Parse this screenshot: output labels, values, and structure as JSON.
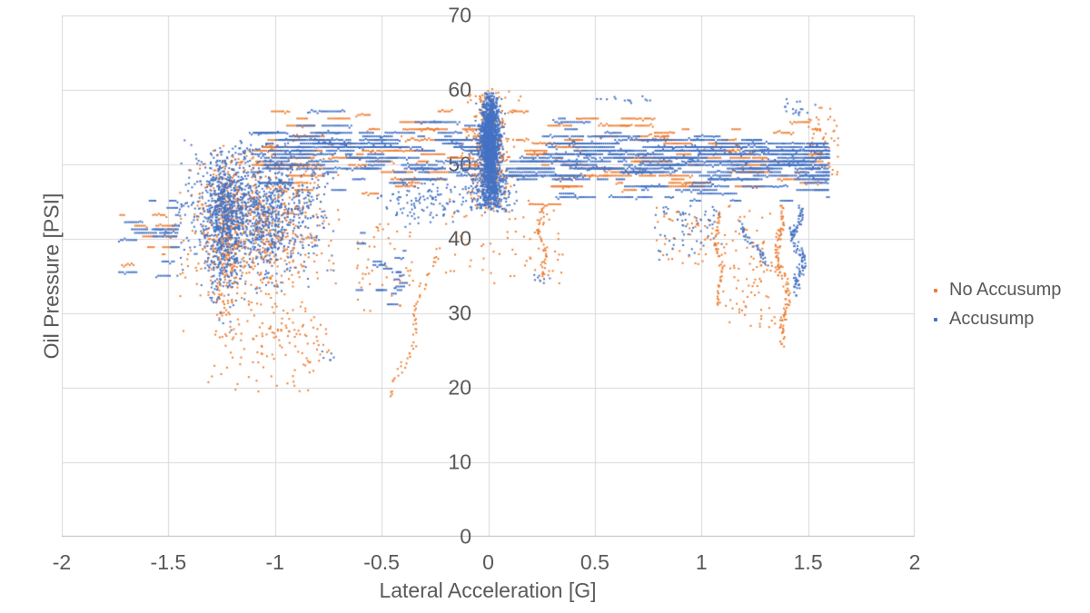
{
  "page": {
    "background": "#FFFFFF"
  },
  "chart_data": {
    "type": "scatter",
    "title": "",
    "xlabel": "Lateral Acceleration [G]",
    "ylabel": "Oil Pressure [PSI]",
    "xlim": [
      -2,
      2
    ],
    "ylim": [
      0,
      70
    ],
    "x_ticks": [
      "-2",
      "-1.5",
      "-1",
      "-0.5",
      "0",
      "0.5",
      "1",
      "1.5",
      "2"
    ],
    "y_ticks": [
      "0",
      "10",
      "20",
      "30",
      "40",
      "50",
      "60",
      "70"
    ],
    "grid": true,
    "legend_position": "right",
    "marker_px": 2,
    "seed": 1337,
    "colors": {
      "grid": "#D9D9D9",
      "axis": "#BFBFBF",
      "text": "#595959"
    },
    "series": [
      {
        "name": "No Accusump",
        "color": "#ED7D31",
        "clusters": [
          {
            "type": "streaks",
            "x": [
              0.07,
              1.57
            ],
            "yMean": 50.8,
            "ySd": 2.8,
            "yClip": [
              44.5,
              58.2
            ],
            "count": 950,
            "lenMean": 0.1
          },
          {
            "type": "streaks",
            "x": [
              -1.12,
              -0.04
            ],
            "yMean": 51.3,
            "ySd": 2.9,
            "yClip": [
              45,
              58.4
            ],
            "count": 650,
            "lenMean": 0.09
          },
          {
            "type": "gauss",
            "xMean": -1.08,
            "xSd": 0.17,
            "yMean": 42,
            "ySd": 5.5,
            "xClip": [
              -1.48,
              -0.7
            ],
            "yClip": [
              25,
              53
            ],
            "count": 680
          },
          {
            "type": "gauss",
            "xMean": -1.23,
            "xSd": 0.045,
            "yMean": 40,
            "ySd": 6,
            "xClip": [
              -1.34,
              -1.12
            ],
            "yClip": [
              24,
              52
            ],
            "count": 240
          },
          {
            "type": "streaks",
            "x": [
              -1.74,
              -1.46
            ],
            "yMean": 40.5,
            "ySd": 2.6,
            "yClip": [
              34,
              46
            ],
            "count": 70,
            "lenMean": 0.05
          },
          {
            "type": "gauss",
            "xMean": 0,
            "xSd": 0.05,
            "yMean": 51.5,
            "ySd": 4,
            "xClip": [
              -0.13,
              0.13
            ],
            "yClip": [
              43.5,
              60.3
            ],
            "count": 380
          },
          {
            "type": "uniform",
            "x": [
              -0.2,
              0.35
            ],
            "y": [
              34,
              45.5
            ],
            "count": 65
          },
          {
            "type": "trail",
            "from": [
              0.24,
              44
            ],
            "to": [
              0.27,
              34.5
            ],
            "count": 45,
            "wiggle": 0.015,
            "jitterY": 0.7
          },
          {
            "type": "trail",
            "from": [
              -0.25,
              38.5
            ],
            "to": [
              -0.44,
              18.5
            ],
            "count": 55,
            "wiggle": 0.02,
            "jitterY": 0.8
          },
          {
            "type": "uniform",
            "x": [
              -0.62,
              -0.35
            ],
            "y": [
              30,
              42
            ],
            "count": 50
          },
          {
            "type": "uniform",
            "x": [
              0.78,
              1.38
            ],
            "y": [
              36,
              44.5
            ],
            "count": 85
          },
          {
            "type": "trail",
            "from": [
              1.07,
              44
            ],
            "to": [
              1.09,
              30.5
            ],
            "count": 55,
            "wiggle": 0.012,
            "jitterY": 0.8
          },
          {
            "type": "trail",
            "from": [
              1.36,
              44
            ],
            "to": [
              1.4,
              25.8
            ],
            "count": 115,
            "wiggle": 0.02,
            "jitterY": 1
          },
          {
            "type": "uniform",
            "x": [
              1.1,
              1.35
            ],
            "y": [
              28,
              40
            ],
            "count": 65
          },
          {
            "type": "uniform",
            "x": [
              1.5,
              1.65
            ],
            "y": [
              48,
              57.5
            ],
            "count": 50
          },
          {
            "type": "uniform",
            "x": [
              -1.32,
              -0.78
            ],
            "y": [
              19.5,
              28.5
            ],
            "count": 55
          },
          {
            "type": "uniform",
            "x": [
              -0.12,
              0.2
            ],
            "y": [
              58.3,
              59.8
            ],
            "count": 16
          },
          {
            "type": "gauss",
            "xMean": -0.9,
            "xSd": 0.12,
            "yMean": 27,
            "ySd": 2.5,
            "xClip": [
              -1.15,
              -0.72
            ],
            "yClip": [
              20.5,
              33
            ],
            "count": 55
          }
        ]
      },
      {
        "name": "Accusump",
        "color": "#4472C4",
        "clusters": [
          {
            "type": "streaks",
            "x": [
              0.07,
              1.6
            ],
            "yMean": 50.3,
            "ySd": 2.1,
            "yClip": [
              45,
              57.5
            ],
            "count": 2700,
            "lenMean": 0.12
          },
          {
            "type": "streaks",
            "x": [
              -1.12,
              -0.04
            ],
            "yMean": 51.3,
            "ySd": 2.2,
            "yClip": [
              45.5,
              58.3
            ],
            "count": 1350,
            "lenMean": 0.1
          },
          {
            "type": "gauss",
            "xMean": -1.1,
            "xSd": 0.16,
            "yMean": 44,
            "ySd": 4.2,
            "xClip": [
              -1.45,
              -0.72
            ],
            "yClip": [
              30,
              53.5
            ],
            "count": 1100
          },
          {
            "type": "gauss",
            "xMean": -1.24,
            "xSd": 0.04,
            "yMean": 41.5,
            "ySd": 5,
            "xClip": [
              -1.33,
              -1.13
            ],
            "yClip": [
              27,
              52
            ],
            "count": 470
          },
          {
            "type": "streaks",
            "x": [
              -1.74,
              -1.45
            ],
            "yMean": 40,
            "ySd": 2.8,
            "yClip": [
              33.5,
              45.5
            ],
            "count": 140,
            "lenMean": 0.06
          },
          {
            "type": "gauss",
            "xMean": 0.008,
            "xSd": 0.022,
            "yMean": 52.5,
            "ySd": 3.3,
            "xClip": [
              -0.06,
              0.08
            ],
            "yClip": [
              44,
              59.6
            ],
            "count": 1750
          },
          {
            "type": "gauss",
            "xMean": 0.01,
            "xSd": 0.05,
            "yMean": 46.2,
            "ySd": 1.4,
            "xClip": [
              -0.12,
              0.14
            ],
            "yClip": [
              43.5,
              49.5
            ],
            "count": 280
          },
          {
            "type": "streaks",
            "x": [
              -0.62,
              -0.38
            ],
            "yMean": 36,
            "ySd": 3,
            "yClip": [
              31,
              41.5
            ],
            "count": 85,
            "lenMean": 0.03
          },
          {
            "type": "trail",
            "from": [
              1.44,
              44
            ],
            "to": [
              1.47,
              33
            ],
            "count": 120,
            "wiggle": 0.025,
            "jitterY": 0.9
          },
          {
            "type": "trail",
            "from": [
              1.17,
              42
            ],
            "to": [
              1.32,
              36.5
            ],
            "count": 40,
            "wiggle": 0.01,
            "jitterY": 0.5
          },
          {
            "type": "uniform",
            "x": [
              0.78,
              1.1
            ],
            "y": [
              37,
              44.5
            ],
            "count": 65
          },
          {
            "type": "uniform",
            "x": [
              0.5,
              0.78
            ],
            "y": [
              58.2,
              59.2
            ],
            "count": 14
          },
          {
            "type": "uniform",
            "x": [
              1.38,
              1.58
            ],
            "y": [
              56.5,
              58.8
            ],
            "count": 18
          },
          {
            "type": "uniform",
            "x": [
              0.2,
              0.3
            ],
            "y": [
              33.5,
              35.5
            ],
            "count": 8
          },
          {
            "type": "uniform",
            "x": [
              -0.8,
              -0.72
            ],
            "y": [
              23.5,
              25.5
            ],
            "count": 6
          },
          {
            "type": "gauss",
            "xMean": -0.3,
            "xSd": 0.12,
            "yMean": 44.8,
            "ySd": 1.5,
            "xClip": [
              -0.55,
              -0.1
            ],
            "yClip": [
              41.5,
              47.5
            ],
            "count": 110
          }
        ]
      }
    ]
  }
}
